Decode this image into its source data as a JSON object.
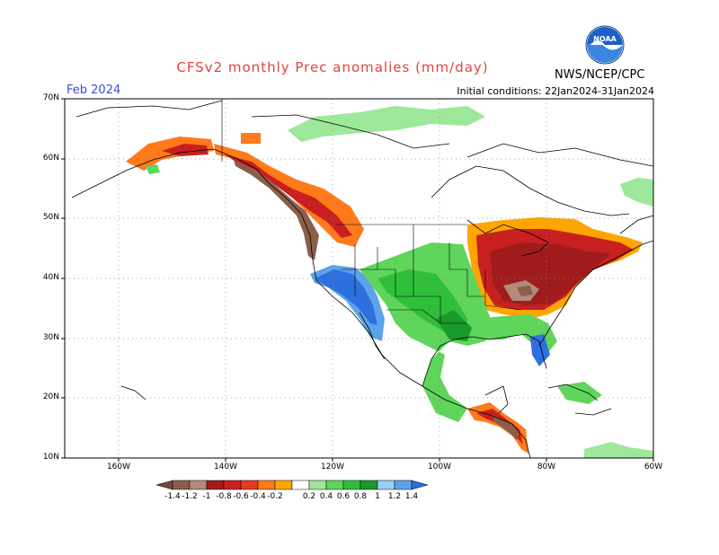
{
  "header": {
    "title": "CFSv2 monthly Prec anomalies (mm/day)",
    "month": "Feb 2024",
    "initial_conditions": "Initial conditions: 22Jan2024-31Jan2024",
    "agency": "NWS/NCEP/CPC",
    "logo_text": "NOAA",
    "logo_icon": "noaa-logo-icon"
  },
  "map": {
    "lat_labels": [
      "70N",
      "60N",
      "50N",
      "40N",
      "30N",
      "20N",
      "10N"
    ],
    "lon_labels": [
      "160W",
      "140W",
      "120W",
      "100W",
      "80W",
      "60W"
    ],
    "lat_range": [
      10,
      70
    ],
    "lon_range": [
      -170,
      -60
    ],
    "grid": "dotted",
    "colors": {
      "coastline": "#000000",
      "border": "#000000"
    }
  },
  "colorbar": {
    "labels": [
      "-1.4",
      "-1.2",
      "-1",
      "-0.8",
      "-0.6",
      "-0.4",
      "-0.2",
      "0.2",
      "0.4",
      "0.6",
      "0.8",
      "1",
      "1.2",
      "1.4"
    ],
    "colors": [
      "#6b4a3c",
      "#8b5e4a",
      "#b08b7e",
      "#a01c1c",
      "#c82020",
      "#e63a1e",
      "#ff7a1a",
      "#ffa500",
      "#ffffff",
      "#9de89a",
      "#5fd55c",
      "#2fbf3a",
      "#1a9a2a",
      "#99d0f5",
      "#5ba3ea",
      "#2e6fe0"
    ]
  }
}
